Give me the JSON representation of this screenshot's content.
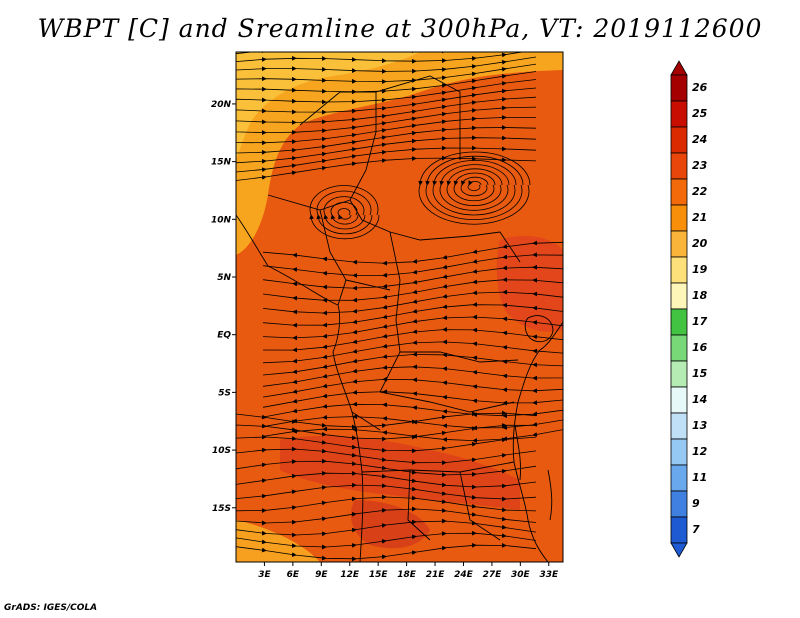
{
  "title": "WBPT [C] and Sreamline at 300hPa, VT: 2019112600",
  "credit": "GrADS: IGES/COLA",
  "map": {
    "lat_labels": [
      "20N",
      "15N",
      "10N",
      "5N",
      "EQ",
      "5S",
      "10S",
      "15S"
    ],
    "lon_labels": [
      "3E",
      "6E",
      "9E",
      "12E",
      "15E",
      "18E",
      "21E",
      "24E",
      "27E",
      "30E",
      "33E"
    ],
    "lat_values": [
      20,
      15,
      10,
      5,
      0,
      -5,
      -10,
      -15
    ],
    "lon_values": [
      3,
      6,
      9,
      12,
      15,
      18,
      21,
      24,
      27,
      30,
      33
    ],
    "lon_range": [
      0,
      34.5
    ],
    "lat_range": [
      -19.7,
      24.5
    ],
    "base_color": "#e85a10"
  },
  "colorbar": {
    "labels": [
      "26",
      "25",
      "24",
      "23",
      "22",
      "21",
      "20",
      "19",
      "18",
      "17",
      "16",
      "15",
      "14",
      "13",
      "12",
      "11",
      "9",
      "7"
    ],
    "colors": [
      "#a50000",
      "#c80e00",
      "#dc2a00",
      "#e8460a",
      "#f26a0a",
      "#f78f0a",
      "#fbb43a",
      "#fde07a",
      "#fdf6b8",
      "#42c342",
      "#78d878",
      "#b4ecb4",
      "#e6f8f8",
      "#c0e0f8",
      "#96c8f4",
      "#6aa8ee",
      "#4080e0",
      "#1e5ad2"
    ],
    "top_arrow_color": "#a50000",
    "bottom_arrow_color": "#1e5ad2"
  }
}
